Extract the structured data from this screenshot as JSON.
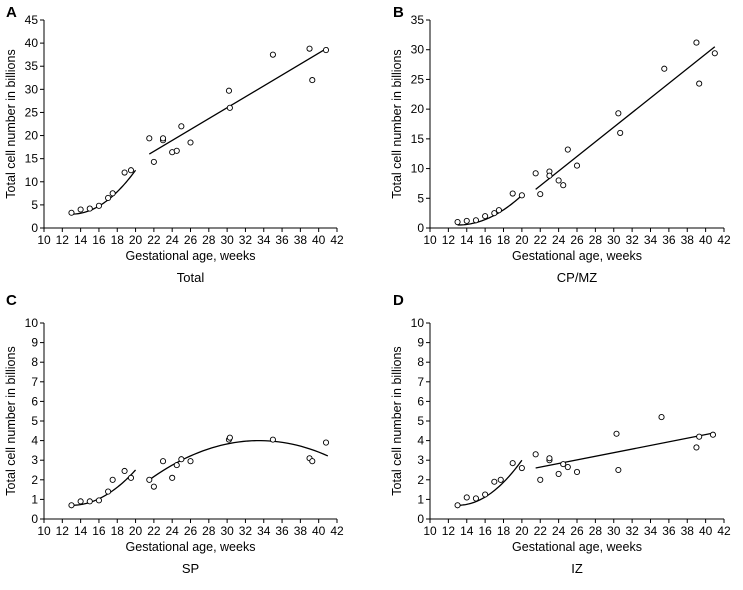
{
  "figure": {
    "x_ticks": [
      10,
      12,
      14,
      16,
      18,
      20,
      22,
      24,
      26,
      28,
      30,
      32,
      34,
      36,
      38,
      40,
      42
    ]
  },
  "chart_data": [
    {
      "type": "scatter",
      "letter": "A",
      "caption": "Total",
      "xlabel": "Gestational age, weeks",
      "ylabel": "Total cell number in billions",
      "xlim": [
        10,
        42
      ],
      "ylim": [
        0,
        45
      ],
      "y_ticks": [
        0,
        5,
        10,
        15,
        20,
        25,
        30,
        35,
        40,
        45
      ],
      "points": [
        [
          13,
          3.3
        ],
        [
          14,
          4.0
        ],
        [
          15,
          4.2
        ],
        [
          16,
          4.8
        ],
        [
          17,
          6.5
        ],
        [
          17.5,
          7.5
        ],
        [
          18.8,
          12.0
        ],
        [
          19.5,
          12.5
        ],
        [
          21.5,
          19.4
        ],
        [
          22,
          14.3
        ],
        [
          23,
          19.0
        ],
        [
          23,
          19.4
        ],
        [
          24,
          16.4
        ],
        [
          24.5,
          16.7
        ],
        [
          25,
          22.0
        ],
        [
          26,
          18.5
        ],
        [
          30.2,
          29.7
        ],
        [
          30.3,
          26.0
        ],
        [
          35,
          37.5
        ],
        [
          39,
          38.8
        ],
        [
          39.3,
          32.0
        ],
        [
          40.8,
          38.5
        ]
      ],
      "fits": [
        {
          "type": "quadratic",
          "x": [
            13,
            20
          ],
          "y": [
            3.0,
            12.5
          ],
          "vertex_x": 13
        },
        {
          "type": "linear",
          "x": [
            21.5,
            41
          ],
          "y": [
            16.0,
            39.0
          ]
        }
      ]
    },
    {
      "type": "scatter",
      "letter": "B",
      "caption": "CP/MZ",
      "xlabel": "Gestational age, weeks",
      "ylabel": "Total cell number in billions",
      "xlim": [
        10,
        42
      ],
      "ylim": [
        0,
        35
      ],
      "y_ticks": [
        0,
        5,
        10,
        15,
        20,
        25,
        30,
        35
      ],
      "points": [
        [
          13,
          1.0
        ],
        [
          14,
          1.2
        ],
        [
          15,
          1.3
        ],
        [
          16,
          2.0
        ],
        [
          17,
          2.5
        ],
        [
          17.5,
          3.0
        ],
        [
          19,
          5.8
        ],
        [
          20,
          5.5
        ],
        [
          21.5,
          9.2
        ],
        [
          22,
          5.7
        ],
        [
          23,
          9.5
        ],
        [
          23,
          8.8
        ],
        [
          24,
          8.0
        ],
        [
          24.5,
          7.2
        ],
        [
          25,
          13.2
        ],
        [
          26,
          10.5
        ],
        [
          30.5,
          19.3
        ],
        [
          30.7,
          16.0
        ],
        [
          35.5,
          26.8
        ],
        [
          39,
          31.2
        ],
        [
          39.3,
          24.3
        ],
        [
          41,
          29.4
        ]
      ],
      "fits": [
        {
          "type": "quadratic",
          "x": [
            13,
            20
          ],
          "y": [
            0.5,
            5.5
          ],
          "vertex_x": 13
        },
        {
          "type": "linear",
          "x": [
            21.5,
            41
          ],
          "y": [
            6.5,
            30.5
          ]
        }
      ]
    },
    {
      "type": "scatter",
      "letter": "C",
      "caption": "SP",
      "xlabel": "Gestational age, weeks",
      "ylabel": "Total cell number in billions",
      "xlim": [
        10,
        42
      ],
      "ylim": [
        0,
        10
      ],
      "y_ticks": [
        0,
        1,
        2,
        3,
        4,
        5,
        6,
        7,
        8,
        9,
        10
      ],
      "points": [
        [
          13,
          0.7
        ],
        [
          14,
          0.9
        ],
        [
          15,
          0.9
        ],
        [
          16,
          0.95
        ],
        [
          17,
          1.4
        ],
        [
          17.5,
          2.0
        ],
        [
          18.8,
          2.45
        ],
        [
          19.5,
          2.1
        ],
        [
          21.5,
          2.0
        ],
        [
          22,
          1.65
        ],
        [
          23,
          2.95
        ],
        [
          24,
          2.1
        ],
        [
          24.5,
          2.75
        ],
        [
          25,
          3.05
        ],
        [
          26,
          2.95
        ],
        [
          30.2,
          4.05
        ],
        [
          30.3,
          4.15
        ],
        [
          35,
          4.05
        ],
        [
          39,
          3.1
        ],
        [
          39.3,
          2.95
        ],
        [
          40.8,
          3.9
        ]
      ],
      "fits": [
        {
          "type": "quadratic",
          "x": [
            13,
            20
          ],
          "y": [
            0.7,
            2.5
          ],
          "vertex_x": 13
        },
        {
          "type": "quadratic",
          "x": [
            21.5,
            41
          ],
          "y": [
            2.0,
            3.2
          ],
          "vertex_x": 33.5,
          "vertex_y": 4.0
        }
      ]
    },
    {
      "type": "scatter",
      "letter": "D",
      "caption": "IZ",
      "xlabel": "Gestational age, weeks",
      "ylabel": "Total cell number in billions",
      "xlim": [
        10,
        42
      ],
      "ylim": [
        0,
        10
      ],
      "y_ticks": [
        0,
        1,
        2,
        3,
        4,
        5,
        6,
        7,
        8,
        9,
        10
      ],
      "points": [
        [
          13,
          0.7
        ],
        [
          14,
          1.1
        ],
        [
          15,
          1.05
        ],
        [
          16,
          1.25
        ],
        [
          17,
          1.9
        ],
        [
          17.7,
          2.0
        ],
        [
          19,
          2.85
        ],
        [
          20,
          2.6
        ],
        [
          21.5,
          3.3
        ],
        [
          22,
          2.0
        ],
        [
          23,
          3.0
        ],
        [
          23,
          3.1
        ],
        [
          24,
          2.3
        ],
        [
          24.5,
          2.8
        ],
        [
          25,
          2.65
        ],
        [
          26,
          2.4
        ],
        [
          30.3,
          4.35
        ],
        [
          30.5,
          2.5
        ],
        [
          35.2,
          5.2
        ],
        [
          39,
          3.65
        ],
        [
          39.3,
          4.2
        ],
        [
          40.8,
          4.3
        ]
      ],
      "fits": [
        {
          "type": "quadratic",
          "x": [
            13,
            20
          ],
          "y": [
            0.7,
            3.0
          ],
          "vertex_x": 13
        },
        {
          "type": "linear",
          "x": [
            21.5,
            41
          ],
          "y": [
            2.6,
            4.4
          ]
        }
      ]
    }
  ]
}
